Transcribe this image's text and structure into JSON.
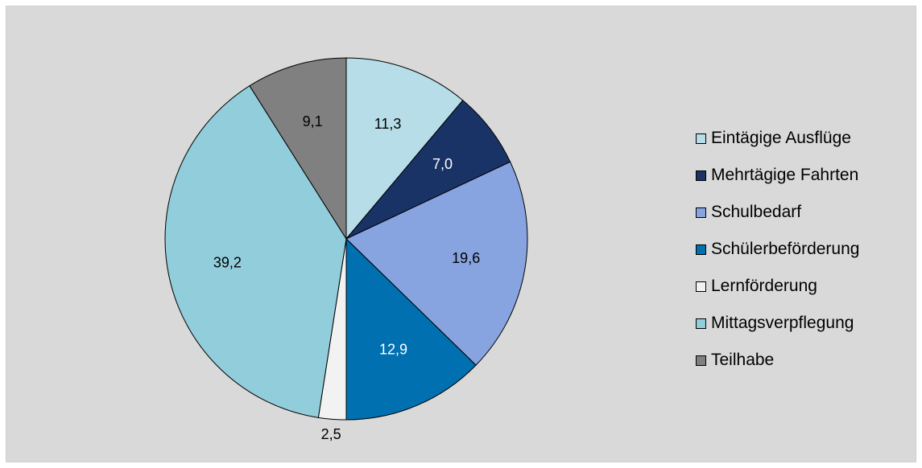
{
  "chart_data": {
    "type": "pie",
    "slices": [
      {
        "label": "Eintägige Ausflüge",
        "value": 11.3,
        "value_label": "11,3",
        "color": "#b7dde8"
      },
      {
        "label": "Mehrtägige Fahrten",
        "value": 7.0,
        "value_label": "7,0",
        "color": "#1a3366"
      },
      {
        "label": "Schulbedarf",
        "value": 19.6,
        "value_label": "19,6",
        "color": "#87a3e0"
      },
      {
        "label": "Schülerbeförderung",
        "value": 12.9,
        "value_label": "12,9",
        "color": "#0070b0"
      },
      {
        "label": "Lernförderung",
        "value": 2.5,
        "value_label": "2,5",
        "color": "#f2f2f2"
      },
      {
        "label": "Mittagsverpflegung",
        "value": 39.2,
        "value_label": "39,2",
        "color": "#92cddc"
      },
      {
        "label": "Teilhabe",
        "value": 9.1,
        "value_label": "9,1",
        "color": "#808080"
      }
    ],
    "legend_position": "right",
    "background": "#d9d9d9"
  }
}
